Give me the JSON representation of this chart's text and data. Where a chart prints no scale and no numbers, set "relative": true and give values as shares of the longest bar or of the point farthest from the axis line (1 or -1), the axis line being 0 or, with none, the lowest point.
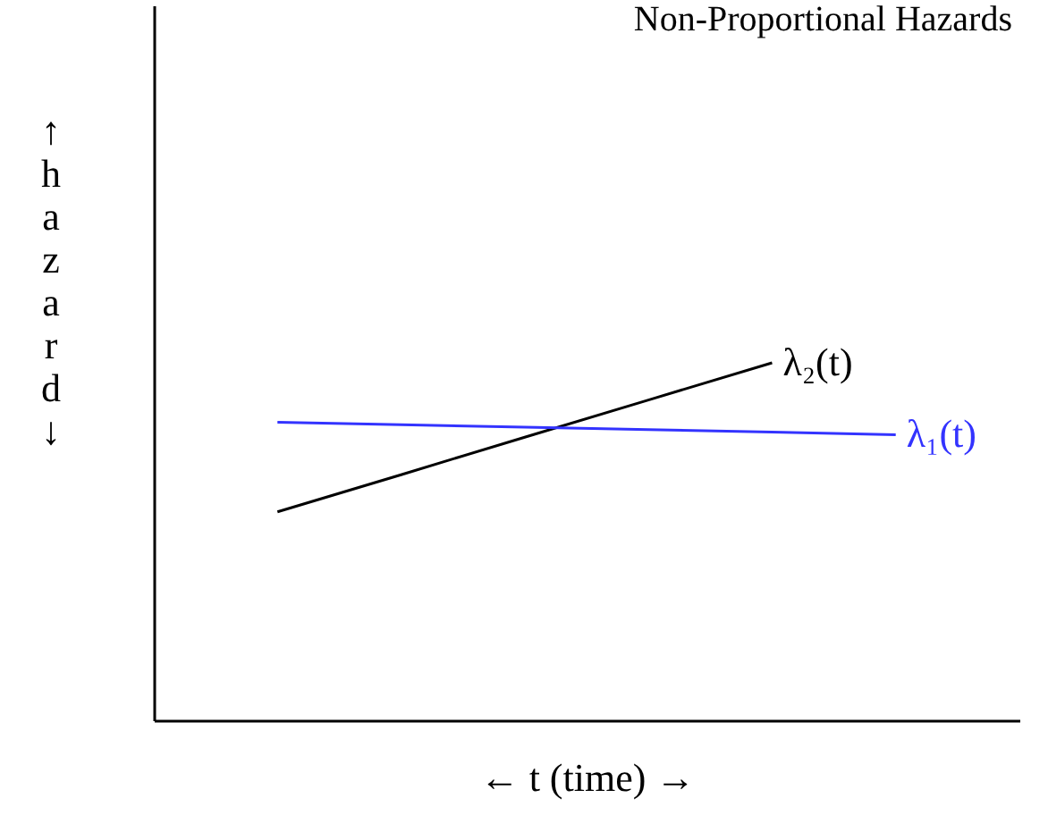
{
  "chart_data": {
    "type": "line",
    "title": "Non-Proportional Hazards",
    "xlabel": "←   t (time)   →",
    "ylabel": "↑  hazard  ↓",
    "relative": true,
    "grid": false,
    "legend": false,
    "categories": [
      null,
      null,
      null,
      null,
      null,
      null
    ],
    "series": [
      {
        "name": "λ₂(t)",
        "color": "#000000",
        "values": [
          0.583,
          0.687,
          0.792,
          0.896,
          1.0,
          null
        ]
      },
      {
        "name": "λ₁(t)",
        "color": "#3333ff",
        "values": [
          0.834,
          0.827,
          0.82,
          0.813,
          0.806,
          0.799
        ]
      }
    ]
  }
}
